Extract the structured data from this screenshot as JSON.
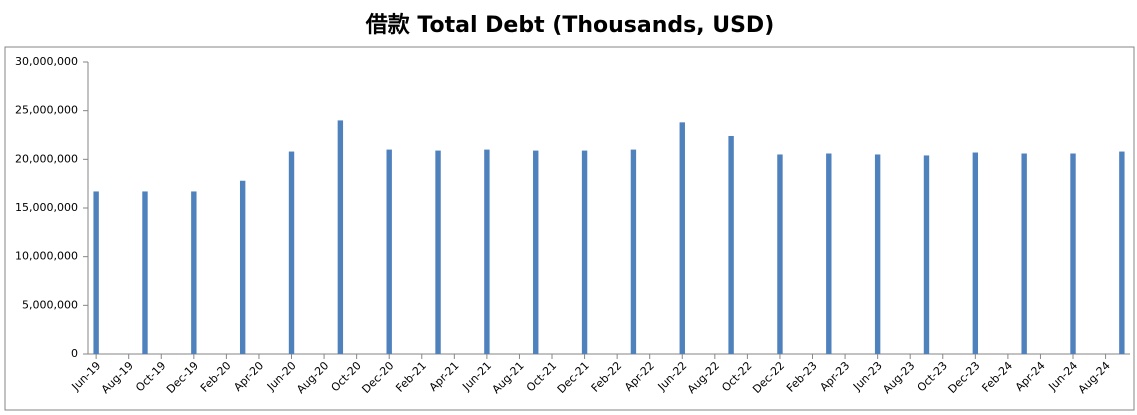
{
  "chart_data": {
    "type": "bar",
    "title": "借款 Total Debt (Thousands, USD)",
    "categories": [
      "Jun-19",
      null,
      "Aug-19",
      null,
      "Oct-19",
      null,
      "Dec-19",
      null,
      "Feb-20",
      null,
      "Apr-20",
      null,
      "Jun-20",
      null,
      "Aug-20",
      null,
      "Oct-20",
      null,
      "Dec-20",
      null,
      "Feb-21",
      null,
      "Apr-21",
      null,
      "Jun-21",
      null,
      "Aug-21",
      null,
      "Oct-21",
      null,
      "Dec-21",
      null,
      "Feb-22",
      null,
      "Apr-22",
      null,
      "Jun-22",
      null,
      "Aug-22",
      null,
      "Oct-22",
      null,
      "Dec-22",
      null,
      "Feb-23",
      null,
      "Apr-23",
      null,
      "Jun-23",
      null,
      "Aug-23",
      null,
      "Oct-23",
      null,
      "Dec-23",
      null,
      "Feb-24",
      null,
      "Apr-24",
      null,
      "Jun-24",
      null,
      "Aug-24",
      null
    ],
    "values": [
      16700000,
      null,
      null,
      16700000,
      null,
      null,
      16700000,
      null,
      null,
      17800000,
      null,
      null,
      20800000,
      null,
      null,
      24000000,
      null,
      null,
      21000000,
      null,
      null,
      20900000,
      null,
      null,
      21000000,
      null,
      null,
      20900000,
      null,
      null,
      20900000,
      null,
      null,
      21000000,
      null,
      null,
      23800000,
      null,
      null,
      22400000,
      null,
      null,
      20500000,
      null,
      null,
      20600000,
      null,
      null,
      20500000,
      null,
      null,
      20400000,
      null,
      null,
      20700000,
      null,
      null,
      20600000,
      null,
      null,
      20600000,
      null,
      null,
      20800000
    ],
    "color": "#4f81bd",
    "ylim": [
      0,
      30000000
    ],
    "yticks": [
      0,
      {
        "value": 5000000,
        "label": "5,000,000"
      },
      {
        "value": 10000000,
        "label": "10,000,000"
      },
      {
        "value": 15000000,
        "label": "15,000,000"
      },
      {
        "value": 20000000,
        "label": "20,000,000"
      },
      {
        "value": 25000000,
        "label": "25,000,000"
      },
      {
        "value": 30000000,
        "label": "30,000,000"
      }
    ],
    "grid": false
  }
}
